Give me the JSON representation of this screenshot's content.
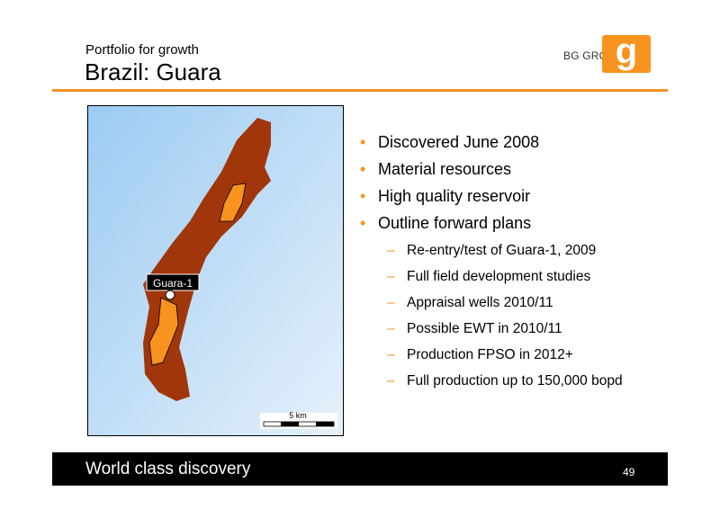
{
  "header": {
    "subtitle": "Portfolio for growth",
    "title": "Brazil: Guara"
  },
  "logo": {
    "text": "BG GROUP",
    "mark": "g"
  },
  "map": {
    "well_label": "Guara-1",
    "scale_label": "5 km"
  },
  "bullets": [
    {
      "text": "Discovered June 2008",
      "sub_bullets": []
    },
    {
      "text": "Material resources",
      "sub_bullets": []
    },
    {
      "text": "High quality reservoir",
      "sub_bullets": []
    },
    {
      "text": "Outline forward plans",
      "sub_bullets": [
        "Re-entry/test of Guara-1, 2009",
        "Full field development studies",
        "Appraisal wells 2010/11",
        "Possible EWT in 2010/11",
        "Production FPSO in 2012+",
        "Full production up to 150,000 bopd"
      ]
    }
  ],
  "footer": {
    "text": "World class discovery",
    "page_number": 49
  }
}
